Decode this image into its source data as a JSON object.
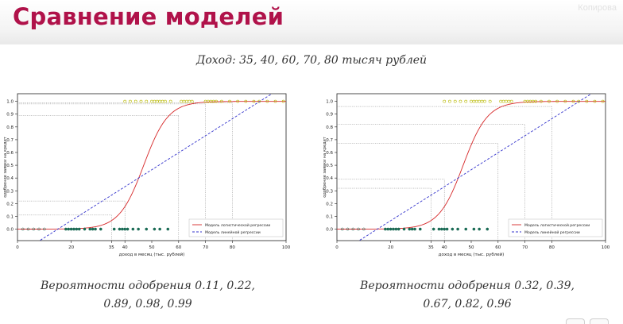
{
  "slide": {
    "title": "Сравнение моделей",
    "watermark": "Копирова",
    "subtitle": "Доход: 35, 40, 60, 70, 80 тысяч рублей",
    "captions": [
      {
        "line1": "Вероятности одобрения 0.11, 0.22,",
        "line2": "0.89, 0.98, 0.99"
      },
      {
        "line1": "Вероятности одобрения 0.32, 0.39,",
        "line2": "0.67, 0.82, 0.96"
      }
    ]
  },
  "colors": {
    "title": "#b0124a",
    "logistic": "#d62728",
    "linear": "#3333cc",
    "point_approved": "#b8b800",
    "point_rejected": "#1a6b55",
    "helper_line": "#888888"
  },
  "chart_data": [
    {
      "type": "line",
      "xlabel": "доход в месяц (тыс. рублей)",
      "ylabel": "одобрение заявки на кредит",
      "xlim": [
        0,
        100
      ],
      "ylim": [
        -0.09,
        1.06
      ],
      "xticks": [
        0,
        20,
        35,
        40,
        50,
        60,
        70,
        80,
        100
      ],
      "yticks": [
        0.0,
        0.1,
        0.2,
        0.3,
        0.4,
        0.5,
        0.6,
        0.7,
        0.8,
        0.9,
        1.0
      ],
      "legend_position": "bottom-right",
      "series": [
        {
          "name": "Модель логистической регрессии",
          "kind": "logistic",
          "x0": 47,
          "k": 0.22
        },
        {
          "name": "Модель линейной регрессии",
          "kind": "linear",
          "slope": 0.0133,
          "intercept": -0.2
        }
      ],
      "query_x": [
        35,
        40,
        60,
        70,
        80
      ],
      "query_y": [
        0.11,
        0.22,
        0.89,
        0.98,
        0.99
      ],
      "points_rejected_x": [
        2,
        4,
        6,
        8,
        10,
        18,
        19,
        20,
        21,
        22,
        23,
        25,
        27,
        28,
        29,
        31,
        36,
        38,
        39,
        40,
        41,
        43,
        45,
        48,
        51,
        53,
        56
      ],
      "points_approved_x": [
        40,
        42,
        44,
        46,
        48,
        50,
        51,
        52,
        53,
        54,
        55,
        57,
        61,
        62,
        63,
        64,
        65,
        70,
        71,
        72,
        73,
        74,
        76,
        79,
        82,
        85,
        88,
        90,
        93,
        96,
        99
      ]
    },
    {
      "type": "line",
      "xlabel": "доход в месяц (тыс. рублей)",
      "ylabel": "одобрение заявки на кредит",
      "xlim": [
        0,
        100
      ],
      "ylim": [
        -0.09,
        1.06
      ],
      "xticks": [
        0,
        20,
        35,
        40,
        50,
        60,
        70,
        80,
        100
      ],
      "yticks": [
        0.0,
        0.1,
        0.2,
        0.3,
        0.4,
        0.5,
        0.6,
        0.7,
        0.8,
        0.9,
        1.0
      ],
      "legend_position": "bottom-right",
      "series": [
        {
          "name": "Модель логистической регрессии",
          "kind": "logistic",
          "x0": 47,
          "k": 0.22
        },
        {
          "name": "Модель линейной регрессии",
          "kind": "linear",
          "slope": 0.0133,
          "intercept": -0.2
        }
      ],
      "query_x": [
        35,
        40,
        60,
        70,
        80
      ],
      "query_y": [
        0.32,
        0.39,
        0.67,
        0.82,
        0.96
      ],
      "points_rejected_x": [
        2,
        4,
        6,
        8,
        10,
        18,
        19,
        20,
        21,
        22,
        23,
        25,
        27,
        28,
        29,
        31,
        36,
        38,
        39,
        40,
        41,
        43,
        45,
        48,
        51,
        53,
        56
      ],
      "points_approved_x": [
        40,
        42,
        44,
        46,
        48,
        50,
        51,
        52,
        53,
        54,
        55,
        57,
        61,
        62,
        63,
        64,
        65,
        70,
        71,
        72,
        73,
        74,
        76,
        79,
        82,
        85,
        88,
        90,
        93,
        96,
        99
      ]
    }
  ]
}
